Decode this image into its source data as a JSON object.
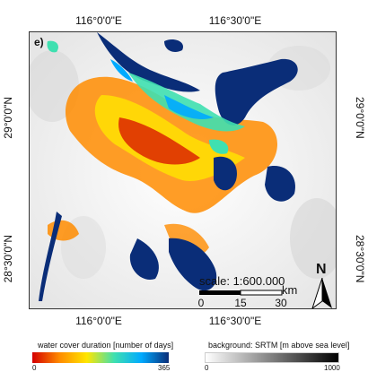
{
  "panel_label": "e)",
  "map": {
    "lon_ticks": [
      "116°0'0\"E",
      "116°30'0\"E"
    ],
    "lat_ticks": [
      "29°0'0\"N",
      "28°30'0\"N"
    ],
    "scale_text": "scale: 1:600.000",
    "scale_bar_numbers": [
      "0",
      "15",
      "30"
    ],
    "scale_unit": "km",
    "north_label": "N"
  },
  "legends": {
    "water": {
      "title": "water cover duration [number of days]",
      "min": "0",
      "max": "365",
      "colors": [
        "#d40000",
        "#ff8c00",
        "#ffe600",
        "#3fe0b0",
        "#00aaff",
        "#0a2d78"
      ]
    },
    "background": {
      "title": "background: SRTM [m above sea level]",
      "min": "0",
      "max": "1000",
      "colors": [
        "#ffffff",
        "#000000"
      ]
    }
  }
}
